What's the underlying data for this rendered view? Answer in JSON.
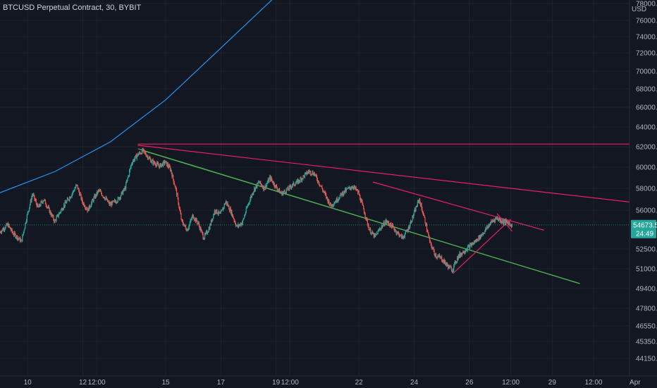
{
  "header": {
    "title": "BTCUSD Perpetual Contract, 30, BYBIT",
    "currency": "USD"
  },
  "colors": {
    "background": "#131722",
    "grid": "#1e222d",
    "candle_up": "#26a69a",
    "candle_down": "#ef5350",
    "trendline_blue": "#2196f3",
    "trendline_pink": "#e91e63",
    "trendline_green": "#4caf50",
    "price_line": "#26a69a",
    "label_text": "#ffffff"
  },
  "chart_data": {
    "type": "candlestick",
    "title": "BTCUSD Perpetual Contract, 30, BYBIT",
    "y_axis": {
      "label": "USD",
      "scale": "log",
      "ylim": [
        43500,
        79000
      ],
      "ticks": [
        "44150.0",
        "45350.0",
        "46550.0",
        "47800.0",
        "49400.0",
        "51000.0",
        "52500.0",
        "56000.0",
        "58000.0",
        "60000.0",
        "62000.0",
        "64000.0",
        "66000.0",
        "68000.0",
        "70000.0",
        "72000.0",
        "74000.0",
        "76000.0",
        "78000.0"
      ]
    },
    "x_axis": {
      "ticks": [
        "10",
        "12",
        "12:00",
        "15",
        "17",
        "19",
        "12:00",
        "22",
        "24",
        "26",
        "12:00",
        "29",
        "12:00",
        "Apr"
      ]
    },
    "current_price": {
      "price": 54673.5,
      "price_text": "54673.5",
      "countdown": "24:49"
    },
    "price_path": [
      {
        "d": 9.0,
        "p": 54000
      },
      {
        "d": 9.3,
        "p": 54700
      },
      {
        "d": 9.5,
        "p": 53900
      },
      {
        "d": 9.8,
        "p": 53200
      },
      {
        "d": 10.0,
        "p": 55500
      },
      {
        "d": 10.2,
        "p": 57500
      },
      {
        "d": 10.4,
        "p": 56200
      },
      {
        "d": 10.6,
        "p": 57000
      },
      {
        "d": 10.8,
        "p": 56000
      },
      {
        "d": 11.0,
        "p": 55000
      },
      {
        "d": 11.3,
        "p": 56300
      },
      {
        "d": 11.6,
        "p": 57400
      },
      {
        "d": 11.8,
        "p": 58300
      },
      {
        "d": 12.0,
        "p": 56800
      },
      {
        "d": 12.2,
        "p": 56000
      },
      {
        "d": 12.4,
        "p": 57000
      },
      {
        "d": 12.6,
        "p": 57800
      },
      {
        "d": 12.8,
        "p": 57200
      },
      {
        "d": 13.0,
        "p": 56500
      },
      {
        "d": 13.3,
        "p": 57000
      },
      {
        "d": 13.55,
        "p": 58000
      },
      {
        "d": 13.8,
        "p": 60500
      },
      {
        "d": 14.0,
        "p": 61200
      },
      {
        "d": 14.2,
        "p": 61600
      },
      {
        "d": 14.5,
        "p": 60600
      },
      {
        "d": 14.8,
        "p": 60100
      },
      {
        "d": 15.0,
        "p": 60500
      },
      {
        "d": 15.2,
        "p": 59800
      },
      {
        "d": 15.4,
        "p": 57800
      },
      {
        "d": 15.6,
        "p": 55000
      },
      {
        "d": 15.8,
        "p": 54200
      },
      {
        "d": 16.0,
        "p": 55500
      },
      {
        "d": 16.2,
        "p": 54800
      },
      {
        "d": 16.4,
        "p": 53500
      },
      {
        "d": 16.6,
        "p": 54400
      },
      {
        "d": 16.8,
        "p": 56000
      },
      {
        "d": 17.0,
        "p": 55600
      },
      {
        "d": 17.2,
        "p": 56800
      },
      {
        "d": 17.4,
        "p": 55800
      },
      {
        "d": 17.6,
        "p": 54500
      },
      {
        "d": 17.8,
        "p": 54900
      },
      {
        "d": 18.0,
        "p": 56500
      },
      {
        "d": 18.2,
        "p": 57800
      },
      {
        "d": 18.4,
        "p": 58600
      },
      {
        "d": 18.6,
        "p": 58000
      },
      {
        "d": 18.8,
        "p": 59000
      },
      {
        "d": 19.0,
        "p": 58200
      },
      {
        "d": 19.2,
        "p": 57500
      },
      {
        "d": 19.4,
        "p": 57800
      },
      {
        "d": 19.6,
        "p": 58300
      },
      {
        "d": 19.8,
        "p": 58600
      },
      {
        "d": 20.0,
        "p": 59100
      },
      {
        "d": 20.2,
        "p": 59600
      },
      {
        "d": 20.4,
        "p": 59400
      },
      {
        "d": 20.6,
        "p": 58400
      },
      {
        "d": 20.8,
        "p": 57400
      },
      {
        "d": 21.0,
        "p": 56400
      },
      {
        "d": 21.2,
        "p": 56900
      },
      {
        "d": 21.4,
        "p": 57500
      },
      {
        "d": 21.6,
        "p": 57900
      },
      {
        "d": 21.8,
        "p": 58200
      },
      {
        "d": 22.0,
        "p": 57600
      },
      {
        "d": 22.2,
        "p": 56000
      },
      {
        "d": 22.4,
        "p": 54200
      },
      {
        "d": 22.6,
        "p": 53600
      },
      {
        "d": 22.8,
        "p": 54400
      },
      {
        "d": 23.0,
        "p": 55000
      },
      {
        "d": 23.2,
        "p": 54600
      },
      {
        "d": 23.4,
        "p": 54000
      },
      {
        "d": 23.6,
        "p": 53500
      },
      {
        "d": 23.8,
        "p": 54300
      },
      {
        "d": 24.0,
        "p": 55600
      },
      {
        "d": 24.2,
        "p": 57000
      },
      {
        "d": 24.4,
        "p": 55200
      },
      {
        "d": 24.6,
        "p": 53000
      },
      {
        "d": 24.8,
        "p": 52000
      },
      {
        "d": 25.0,
        "p": 51800
      },
      {
        "d": 25.2,
        "p": 51300
      },
      {
        "d": 25.4,
        "p": 50900
      },
      {
        "d": 25.6,
        "p": 51900
      },
      {
        "d": 25.8,
        "p": 52300
      },
      {
        "d": 26.0,
        "p": 52700
      },
      {
        "d": 26.2,
        "p": 53100
      },
      {
        "d": 26.4,
        "p": 53600
      },
      {
        "d": 26.6,
        "p": 54200
      },
      {
        "d": 26.8,
        "p": 54900
      },
      {
        "d": 27.0,
        "p": 55300
      },
      {
        "d": 27.2,
        "p": 55000
      },
      {
        "d": 27.4,
        "p": 54900
      },
      {
        "d": 27.55,
        "p": 54673.5
      }
    ],
    "trendlines": [
      {
        "name": "blue-curve",
        "color": "#2196f3",
        "points": [
          {
            "d": 9.0,
            "p": 57600
          },
          {
            "d": 11.0,
            "p": 59600
          },
          {
            "d": 13.0,
            "p": 62500
          },
          {
            "d": 15.0,
            "p": 66800
          },
          {
            "d": 17.0,
            "p": 72600
          },
          {
            "d": 19.0,
            "p": 78900
          }
        ]
      },
      {
        "name": "pink-horizontal",
        "color": "#e91e63",
        "points": [
          {
            "d": 13.99,
            "p": 62270
          },
          {
            "d": 33.0,
            "p": 62270
          }
        ]
      },
      {
        "name": "pink-resistance-long",
        "color": "#e91e63",
        "points": [
          {
            "d": 13.99,
            "p": 62150
          },
          {
            "d": 33.0,
            "p": 56400
          }
        ]
      },
      {
        "name": "pink-resistance-short",
        "color": "#e91e63",
        "points": [
          {
            "d": 22.5,
            "p": 58600
          },
          {
            "d": 28.7,
            "p": 54200
          }
        ]
      },
      {
        "name": "green-support-upper",
        "color": "#4caf50",
        "points": [
          {
            "d": 14.0,
            "p": 61800
          },
          {
            "d": 30.0,
            "p": 49800
          }
        ]
      },
      {
        "name": "green-support-lower",
        "color": "#4caf50",
        "points": [
          {
            "d": 14.2,
            "p": 61600
          },
          {
            "d": 30.0,
            "p": 49800
          }
        ]
      },
      {
        "name": "pink-wedge-lower",
        "color": "#e91e63",
        "points": [
          {
            "d": 25.4,
            "p": 50600
          },
          {
            "d": 27.5,
            "p": 55200
          }
        ]
      },
      {
        "name": "pink-wedge-upper",
        "color": "#e91e63",
        "points": [
          {
            "d": 27.0,
            "p": 55700
          },
          {
            "d": 27.55,
            "p": 54100
          }
        ]
      }
    ]
  }
}
